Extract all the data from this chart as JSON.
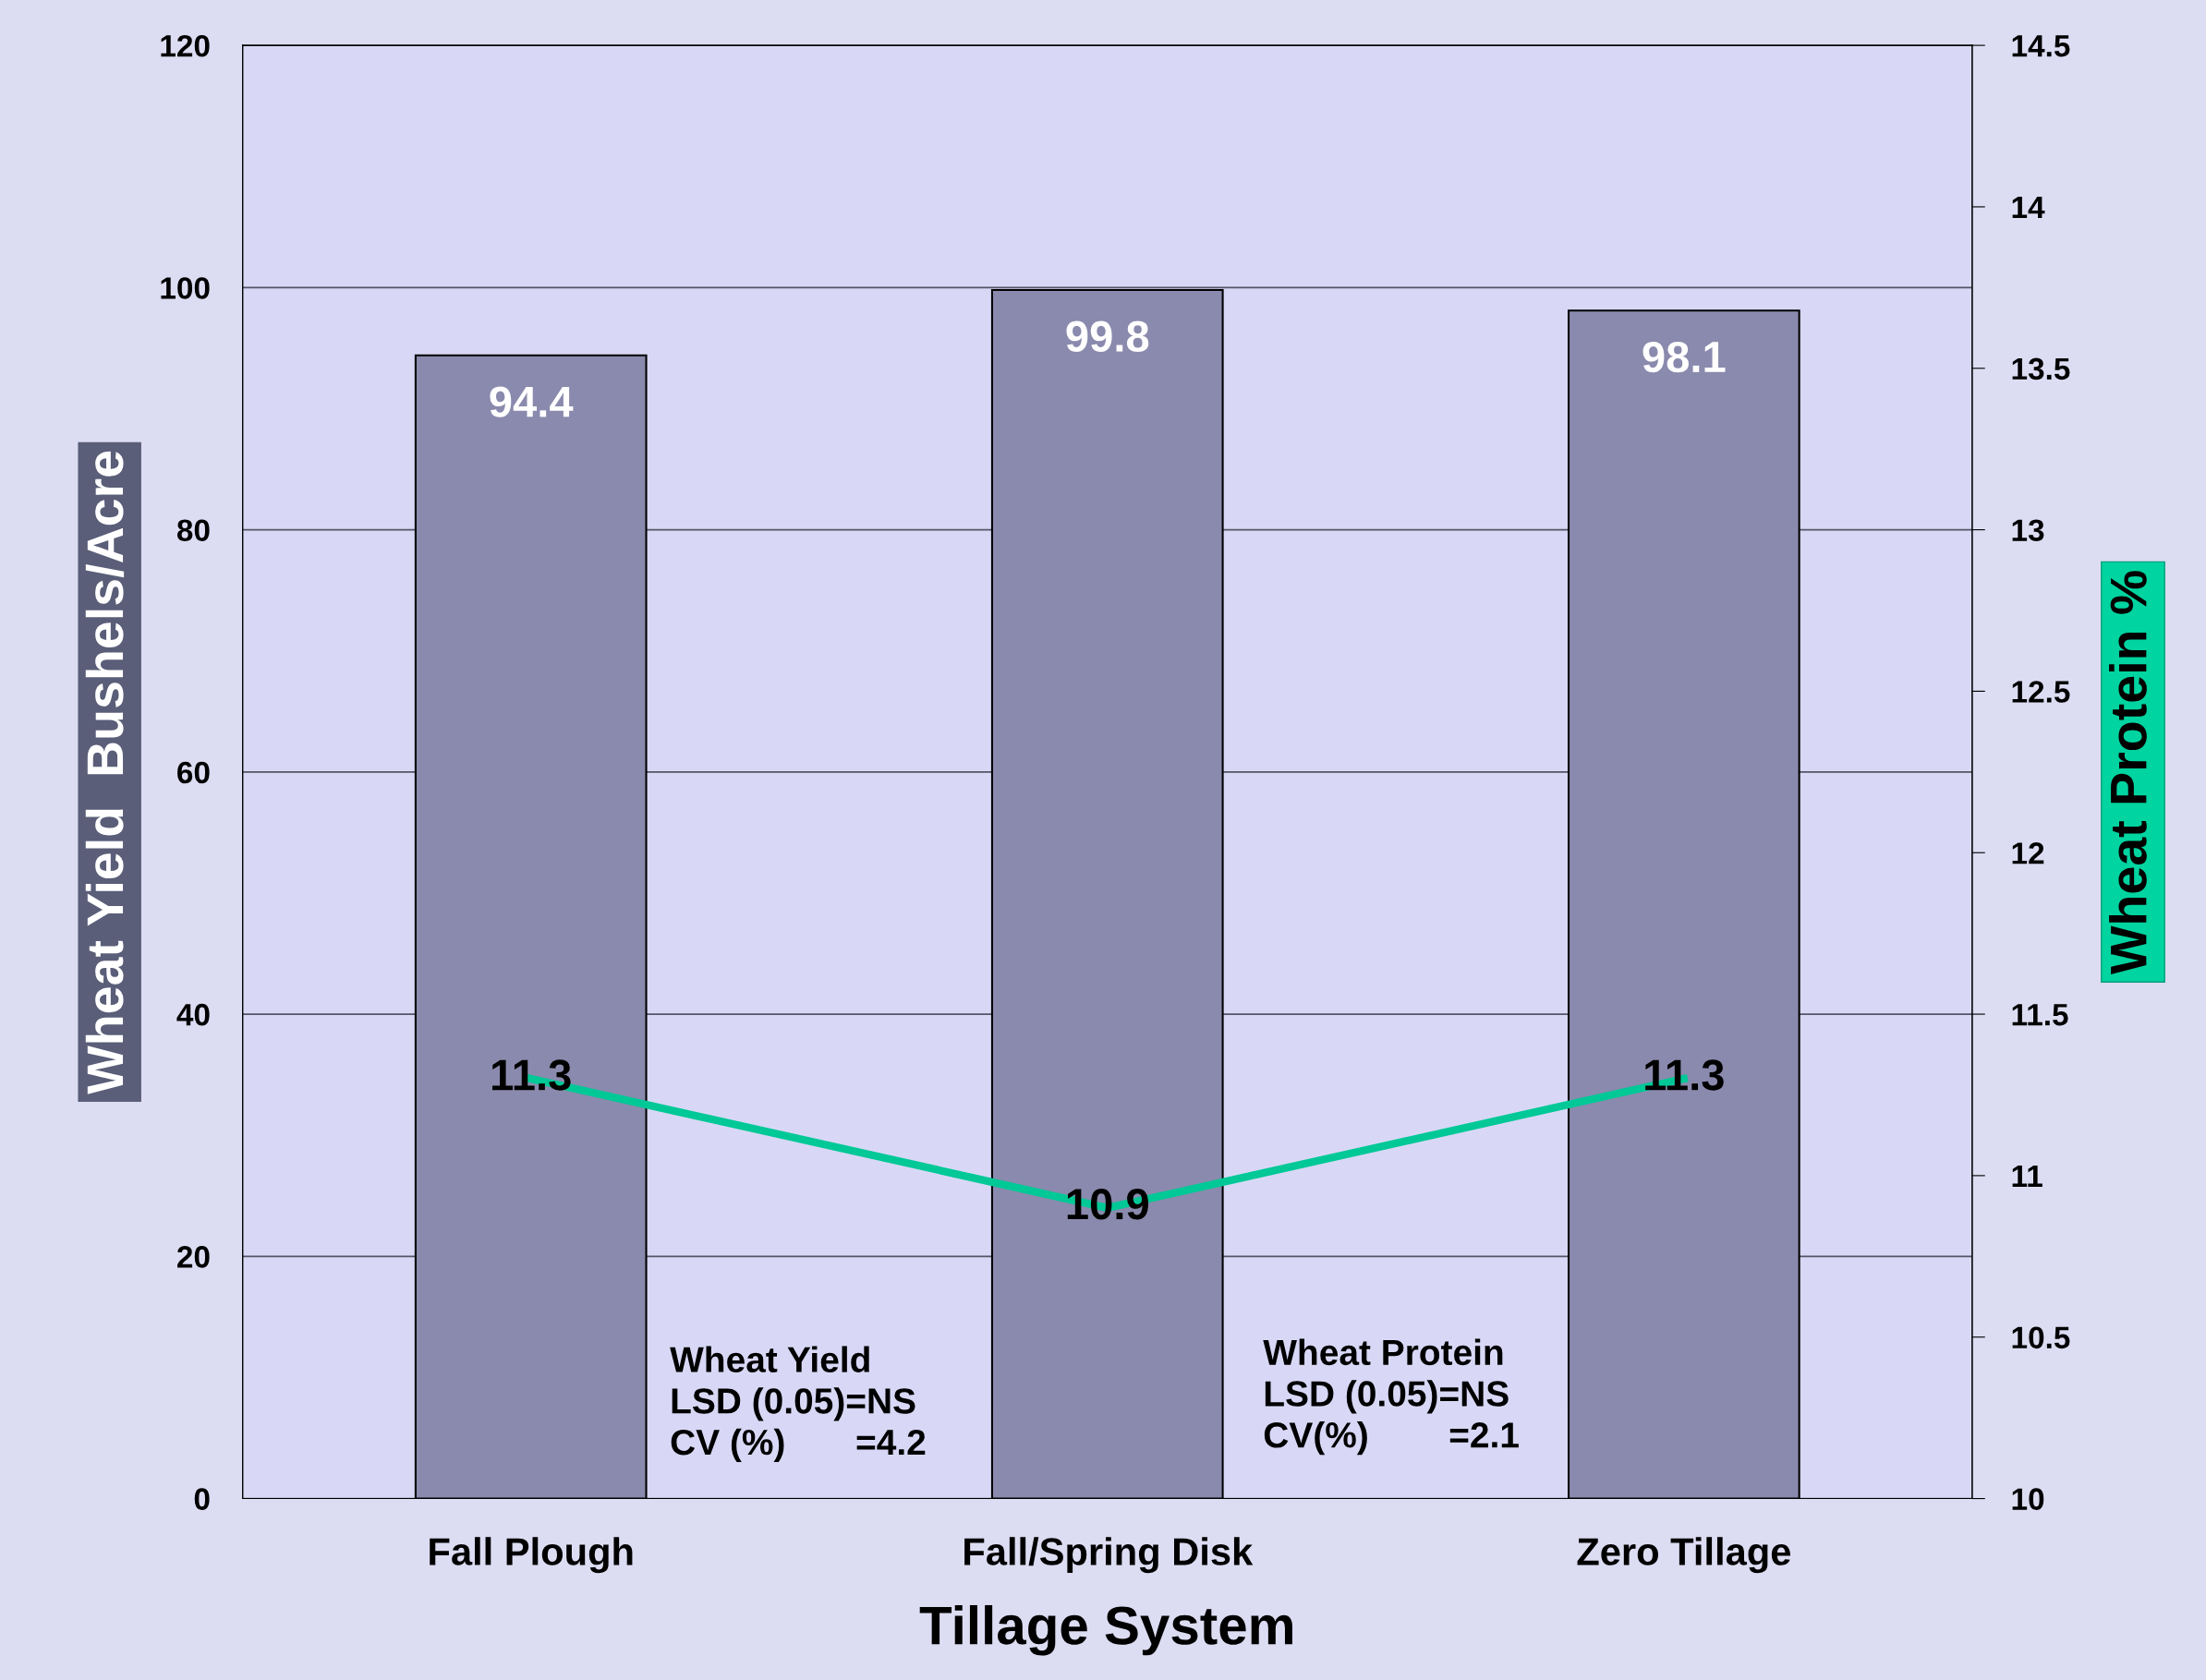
{
  "chart_data": {
    "type": "bar",
    "xlabel": "Tillage System",
    "ylabel": "Wheat Yield  Bushels/Acre",
    "y2label": "Wheat Protein %",
    "categories": [
      "Fall Plough",
      "Fall/Spring Disk",
      "Zero Tillage"
    ],
    "series": [
      {
        "color": "#8a8aae",
        "values": [
          94.4,
          99.8,
          98.1
        ]
      },
      {
        "type": "line",
        "axis": "y2",
        "color": "#00c896",
        "values": [
          11.3,
          10.9,
          11.3
        ]
      }
    ],
    "ylim": [
      0,
      120
    ],
    "yticks": [
      0,
      20,
      40,
      60,
      80,
      100,
      120
    ],
    "y2lim": [
      10,
      14.5
    ],
    "y2ticks": [
      10,
      10.5,
      11,
      11.5,
      12,
      12.5,
      13,
      13.5,
      14,
      14.5
    ],
    "grid": "y",
    "legend": false,
    "marker": "none",
    "line_style": "solid",
    "data_labels": true,
    "annotations": [
      "Wheat Yield\nLSD (0.05)=NS\nCV (%)       =4.2",
      "Wheat Protein\nLSD (0.05)=NS\nCV(%)        =2.1"
    ]
  }
}
